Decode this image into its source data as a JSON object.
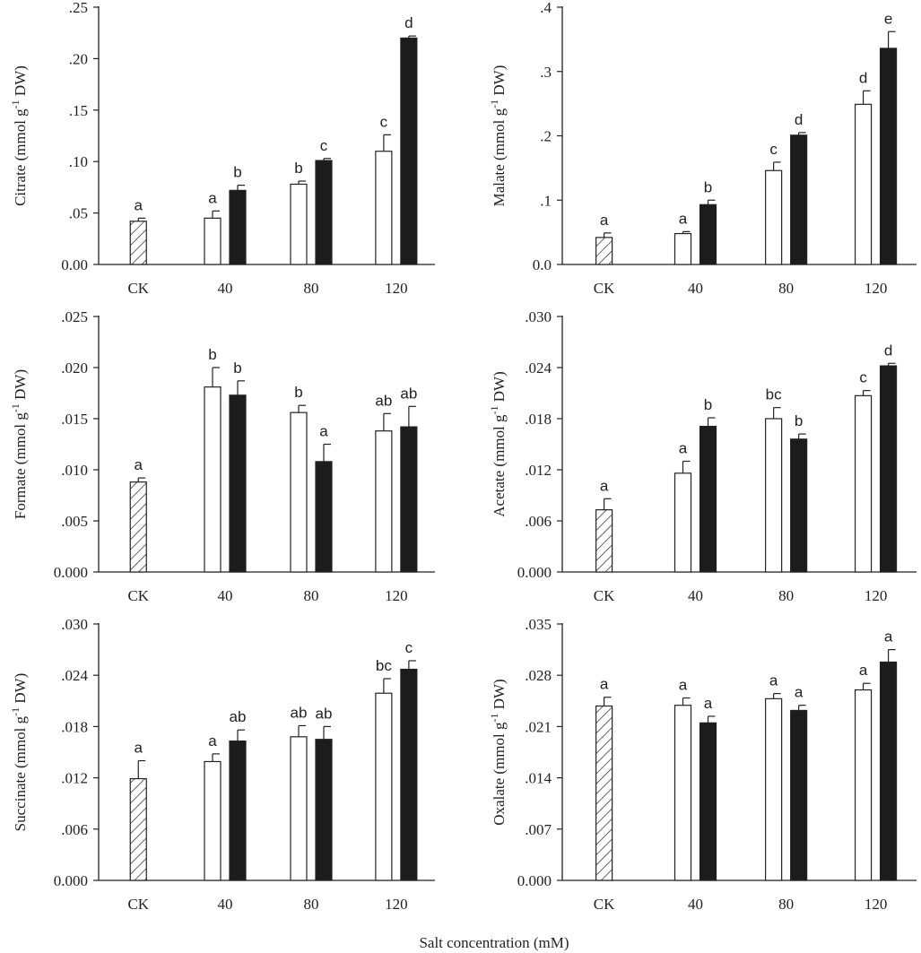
{
  "hatch_color": "#222222",
  "bar_fill_dark": "#1c1c1c",
  "bar_fill_light": "#ffffff",
  "xlabel": "Salt concentration (mM)",
  "chart_data": [
    {
      "type": "bar",
      "ylabel_prefix": "Citrate (mmol g",
      "ylabel_sup": "-1",
      "ylabel_suffix": " DW)",
      "categories": [
        "CK",
        "40",
        "80",
        "120"
      ],
      "ylim": [
        0,
        0.25
      ],
      "yticks": [
        0,
        0.05,
        0.1,
        0.15,
        0.2,
        0.25
      ],
      "ytick_labels": [
        "0.00",
        ".05",
        ".10",
        ".15",
        ".20",
        ".25"
      ],
      "bars": [
        {
          "group": "CK",
          "series": "control",
          "value": 0.042,
          "err": 0.003,
          "sig": "a"
        },
        {
          "group": "40",
          "series": "open",
          "value": 0.045,
          "err": 0.007,
          "sig": "a"
        },
        {
          "group": "40",
          "series": "filled",
          "value": 0.072,
          "err": 0.005,
          "sig": "b"
        },
        {
          "group": "80",
          "series": "open",
          "value": 0.078,
          "err": 0.003,
          "sig": "b"
        },
        {
          "group": "80",
          "series": "filled",
          "value": 0.101,
          "err": 0.002,
          "sig": "c"
        },
        {
          "group": "120",
          "series": "open",
          "value": 0.11,
          "err": 0.016,
          "sig": "c"
        },
        {
          "group": "120",
          "series": "filled",
          "value": 0.22,
          "err": 0.002,
          "sig": "d"
        }
      ]
    },
    {
      "type": "bar",
      "ylabel_prefix": "Malate (mmol g",
      "ylabel_sup": "-1",
      "ylabel_suffix": " DW)",
      "categories": [
        "CK",
        "40",
        "80",
        "120"
      ],
      "ylim": [
        0,
        0.4
      ],
      "yticks": [
        0,
        0.1,
        0.2,
        0.3,
        0.4
      ],
      "ytick_labels": [
        "0.0",
        ".1",
        ".2",
        ".3",
        ".4"
      ],
      "bars": [
        {
          "group": "CK",
          "series": "control",
          "value": 0.042,
          "err": 0.007,
          "sig": "a"
        },
        {
          "group": "40",
          "series": "open",
          "value": 0.048,
          "err": 0.003,
          "sig": "a"
        },
        {
          "group": "40",
          "series": "filled",
          "value": 0.093,
          "err": 0.007,
          "sig": "b"
        },
        {
          "group": "80",
          "series": "open",
          "value": 0.146,
          "err": 0.013,
          "sig": "c"
        },
        {
          "group": "80",
          "series": "filled",
          "value": 0.201,
          "err": 0.004,
          "sig": "d"
        },
        {
          "group": "120",
          "series": "open",
          "value": 0.249,
          "err": 0.021,
          "sig": "d"
        },
        {
          "group": "120",
          "series": "filled",
          "value": 0.336,
          "err": 0.026,
          "sig": "e"
        }
      ]
    },
    {
      "type": "bar",
      "ylabel_prefix": "Formate (mmol g",
      "ylabel_sup": "-1",
      "ylabel_suffix": " DW)",
      "categories": [
        "CK",
        "40",
        "80",
        "120"
      ],
      "ylim": [
        0,
        0.025
      ],
      "yticks": [
        0,
        0.005,
        0.01,
        0.015,
        0.02,
        0.025
      ],
      "ytick_labels": [
        "0.000",
        ".005",
        ".010",
        ".015",
        ".020",
        ".025"
      ],
      "bars": [
        {
          "group": "CK",
          "series": "control",
          "value": 0.0088,
          "err": 0.0004,
          "sig": "a"
        },
        {
          "group": "40",
          "series": "open",
          "value": 0.0181,
          "err": 0.0019,
          "sig": "b"
        },
        {
          "group": "40",
          "series": "filled",
          "value": 0.0173,
          "err": 0.0014,
          "sig": "b"
        },
        {
          "group": "80",
          "series": "open",
          "value": 0.0156,
          "err": 0.0007,
          "sig": "b"
        },
        {
          "group": "80",
          "series": "filled",
          "value": 0.0108,
          "err": 0.0017,
          "sig": "a"
        },
        {
          "group": "120",
          "series": "open",
          "value": 0.0138,
          "err": 0.0017,
          "sig": "ab"
        },
        {
          "group": "120",
          "series": "filled",
          "value": 0.0142,
          "err": 0.002,
          "sig": "ab"
        }
      ]
    },
    {
      "type": "bar",
      "ylabel_prefix": "Acetate  (mmol g",
      "ylabel_sup": "-1",
      "ylabel_suffix": " DW)",
      "categories": [
        "CK",
        "40",
        "80",
        "120"
      ],
      "ylim": [
        0,
        0.03
      ],
      "yticks": [
        0,
        0.006,
        0.012,
        0.018,
        0.024,
        0.03
      ],
      "ytick_labels": [
        "0.000",
        ".006",
        ".012",
        ".018",
        ".024",
        ".030"
      ],
      "bars": [
        {
          "group": "CK",
          "series": "control",
          "value": 0.0073,
          "err": 0.0013,
          "sig": "a"
        },
        {
          "group": "40",
          "series": "open",
          "value": 0.0116,
          "err": 0.0014,
          "sig": "a"
        },
        {
          "group": "40",
          "series": "filled",
          "value": 0.0171,
          "err": 0.001,
          "sig": "b"
        },
        {
          "group": "80",
          "series": "open",
          "value": 0.018,
          "err": 0.0013,
          "sig": "bc"
        },
        {
          "group": "80",
          "series": "filled",
          "value": 0.0156,
          "err": 0.0006,
          "sig": "b"
        },
        {
          "group": "120",
          "series": "open",
          "value": 0.0207,
          "err": 0.0006,
          "sig": "c"
        },
        {
          "group": "120",
          "series": "filled",
          "value": 0.0242,
          "err": 0.0003,
          "sig": "d"
        }
      ]
    },
    {
      "type": "bar",
      "ylabel_prefix": "Succinate (mmol g",
      "ylabel_sup": "-1",
      "ylabel_suffix": " DW)",
      "categories": [
        "CK",
        "40",
        "80",
        "120"
      ],
      "ylim": [
        0,
        0.03
      ],
      "yticks": [
        0,
        0.006,
        0.012,
        0.018,
        0.024,
        0.03
      ],
      "ytick_labels": [
        "0.000",
        ".006",
        ".012",
        ".018",
        ".024",
        ".030"
      ],
      "bars": [
        {
          "group": "CK",
          "series": "control",
          "value": 0.0119,
          "err": 0.0021,
          "sig": "a"
        },
        {
          "group": "40",
          "series": "open",
          "value": 0.0139,
          "err": 0.0009,
          "sig": "a"
        },
        {
          "group": "40",
          "series": "filled",
          "value": 0.0163,
          "err": 0.0013,
          "sig": "ab"
        },
        {
          "group": "80",
          "series": "open",
          "value": 0.0168,
          "err": 0.0013,
          "sig": "ab"
        },
        {
          "group": "80",
          "series": "filled",
          "value": 0.0165,
          "err": 0.0015,
          "sig": "ab"
        },
        {
          "group": "120",
          "series": "open",
          "value": 0.0219,
          "err": 0.0017,
          "sig": "bc"
        },
        {
          "group": "120",
          "series": "filled",
          "value": 0.0247,
          "err": 0.001,
          "sig": "c"
        }
      ]
    },
    {
      "type": "bar",
      "ylabel_prefix": "Oxalate (mmol g",
      "ylabel_sup": "-1",
      "ylabel_suffix": " DW)",
      "categories": [
        "CK",
        "40",
        "80",
        "120"
      ],
      "ylim": [
        0,
        0.035
      ],
      "yticks": [
        0,
        0.007,
        0.014,
        0.021,
        0.028,
        0.035
      ],
      "ytick_labels": [
        "0.000",
        ".007",
        ".014",
        ".021",
        ".028",
        ".035"
      ],
      "bars": [
        {
          "group": "CK",
          "series": "control",
          "value": 0.0238,
          "err": 0.0012,
          "sig": "a"
        },
        {
          "group": "40",
          "series": "open",
          "value": 0.0239,
          "err": 0.001,
          "sig": "a"
        },
        {
          "group": "40",
          "series": "filled",
          "value": 0.0215,
          "err": 0.0009,
          "sig": "a"
        },
        {
          "group": "80",
          "series": "open",
          "value": 0.0248,
          "err": 0.0007,
          "sig": "a"
        },
        {
          "group": "80",
          "series": "filled",
          "value": 0.0232,
          "err": 0.0007,
          "sig": "a"
        },
        {
          "group": "120",
          "series": "open",
          "value": 0.026,
          "err": 0.0009,
          "sig": "a"
        },
        {
          "group": "120",
          "series": "filled",
          "value": 0.0298,
          "err": 0.0017,
          "sig": "a"
        }
      ]
    }
  ]
}
